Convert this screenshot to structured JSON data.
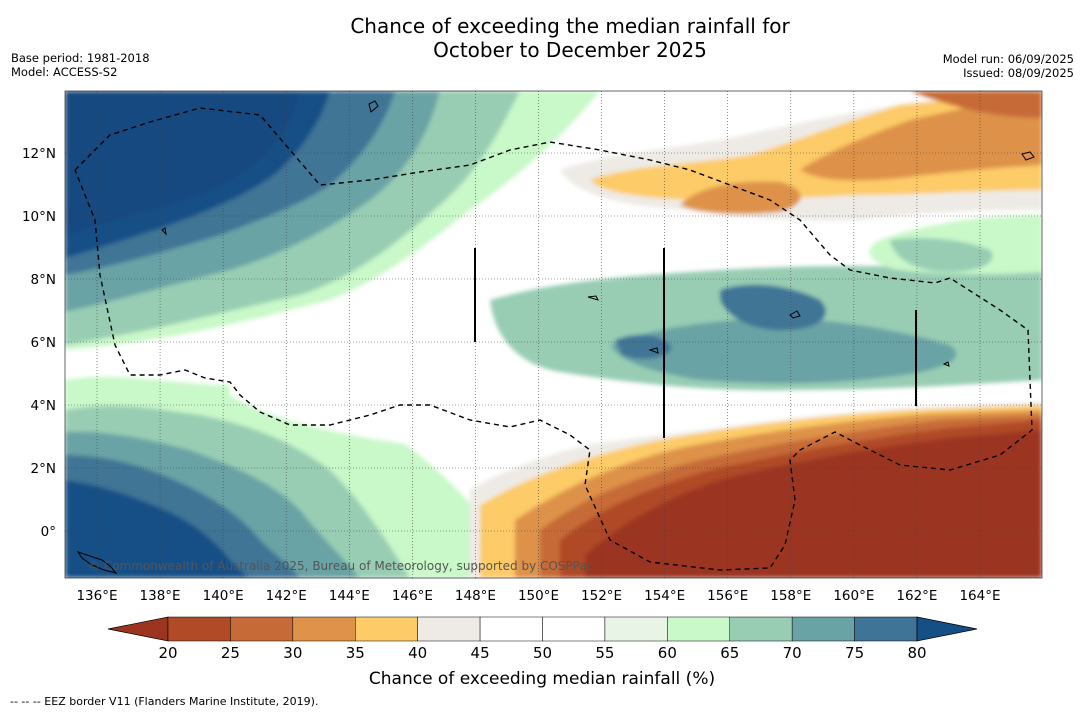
{
  "title": {
    "line1": "Chance of exceeding the median rainfall for",
    "line2": "October to December 2025"
  },
  "meta_left": {
    "base_period": "Base period: 1981-2018",
    "model": "Model: ACCESS-S2"
  },
  "meta_right": {
    "model_run": "Model run: 06/09/2025",
    "issued": "Issued: 08/09/2025"
  },
  "map": {
    "lon_labels": [
      "136°E",
      "138°E",
      "140°E",
      "142°E",
      "144°E",
      "146°E",
      "148°E",
      "150°E",
      "152°E",
      "154°E",
      "156°E",
      "158°E",
      "160°E",
      "162°E",
      "164°E"
    ],
    "lat_labels": [
      "12°N",
      "10°N",
      "8°N",
      "6°N",
      "4°N",
      "2°N",
      "0°"
    ],
    "copyright": "© Commonwealth of Australia 2025, Bureau of Meteorology, supported by COSPPac"
  },
  "colorbar": {
    "ticks": [
      "20",
      "25",
      "30",
      "35",
      "40",
      "45",
      "50",
      "55",
      "60",
      "65",
      "70",
      "75",
      "80"
    ],
    "colors": [
      "#9b3520",
      "#b04a27",
      "#c66a37",
      "#de924a",
      "#fdcb68",
      "#eeebe6",
      "#ffffff",
      "#ffffff",
      "#e8f5e6",
      "#c9f8c9",
      "#98cdb4",
      "#6aa3a6",
      "#3f7496",
      "#144f86"
    ],
    "title": "Chance of exceeding median rainfall (%)"
  },
  "footnote": "--  --  -- EEZ border V11 (Flanders Marine Institute, 2019)."
}
